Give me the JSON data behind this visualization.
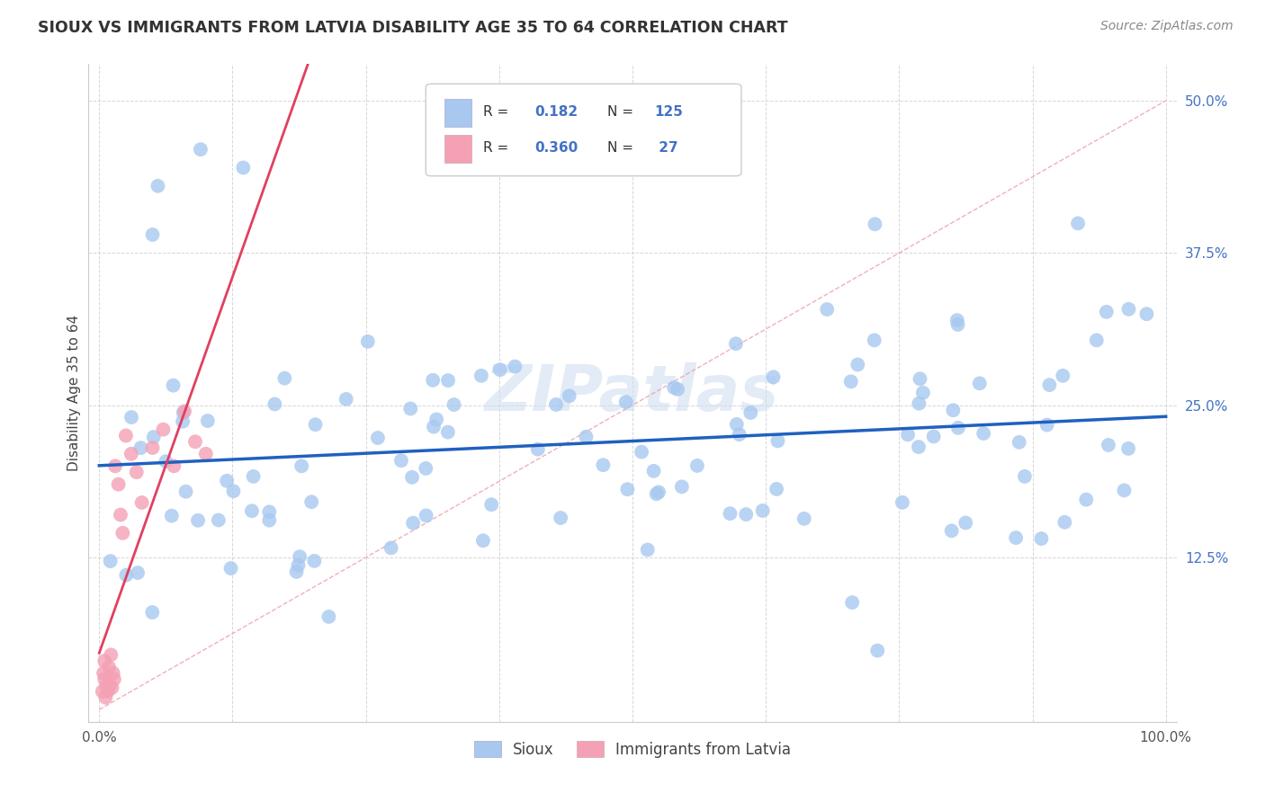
{
  "title": "SIOUX VS IMMIGRANTS FROM LATVIA DISABILITY AGE 35 TO 64 CORRELATION CHART",
  "source": "Source: ZipAtlas.com",
  "ylabel": "Disability Age 35 to 64",
  "xlim": [
    0.0,
    100.0
  ],
  "ylim": [
    -1.0,
    53.0
  ],
  "sioux_color": "#a8c8f0",
  "latvia_color": "#f4a0b5",
  "sioux_line_color": "#2060c0",
  "latvia_line_color": "#e04060",
  "ref_line_color": "#e08898",
  "R_sioux": 0.182,
  "N_sioux": 125,
  "R_latvia": 0.36,
  "N_latvia": 27,
  "watermark": "ZIPatlas",
  "legend_label_1": "Sioux",
  "legend_label_2": "Immigrants from Latvia"
}
